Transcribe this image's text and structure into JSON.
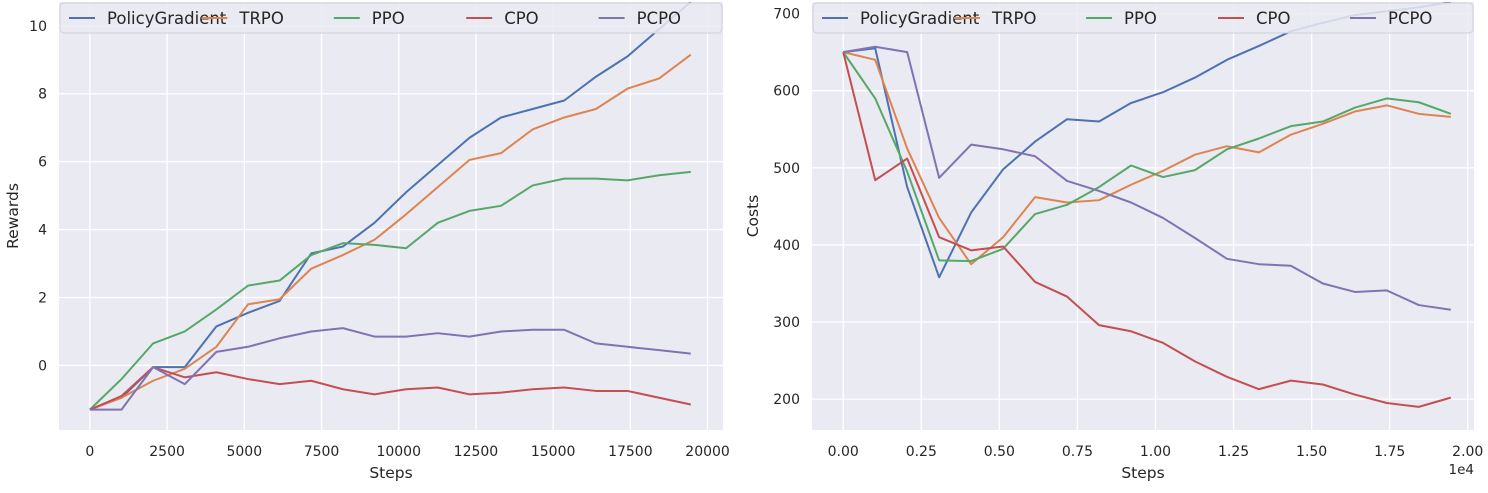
{
  "chart_data": [
    {
      "type": "line",
      "xlabel": "Steps",
      "ylabel": "Rewards",
      "xlim": [
        -1000,
        20500
      ],
      "ylim": [
        -1.9,
        10.7
      ],
      "xticks": [
        0,
        2500,
        5000,
        7500,
        10000,
        12500,
        15000,
        17500,
        20000
      ],
      "xtick_labels": [
        "0",
        "2500",
        "5000",
        "7500",
        "10000",
        "12500",
        "15000",
        "17500",
        "20000"
      ],
      "yticks": [
        0,
        2,
        4,
        6,
        8,
        10
      ],
      "ytick_labels": [
        "0",
        "2",
        "4",
        "6",
        "8",
        "10"
      ],
      "x_offset_label": "",
      "grid": true,
      "legend": "top",
      "x": [
        0,
        1024,
        2048,
        3072,
        4096,
        5120,
        6144,
        7168,
        8192,
        9216,
        10240,
        11264,
        12288,
        13312,
        14336,
        15360,
        16384,
        17408,
        18432,
        19456
      ],
      "series": [
        {
          "name": "PolicyGradient",
          "color": "#4c72b0",
          "values": [
            -1.3,
            -0.95,
            -0.05,
            -0.05,
            1.15,
            1.55,
            1.9,
            3.3,
            3.5,
            4.2,
            5.1,
            5.9,
            6.7,
            7.3,
            7.55,
            7.8,
            8.5,
            9.1,
            9.9,
            10.7
          ]
        },
        {
          "name": "TRPO",
          "color": "#dd8452",
          "values": [
            -1.3,
            -0.95,
            -0.45,
            -0.1,
            0.55,
            1.8,
            1.95,
            2.85,
            3.25,
            3.7,
            4.45,
            5.25,
            6.05,
            6.25,
            6.95,
            7.3,
            7.55,
            8.15,
            8.45,
            9.15
          ]
        },
        {
          "name": "PPO",
          "color": "#55a868",
          "values": [
            -1.3,
            -0.4,
            0.65,
            1.0,
            1.65,
            2.35,
            2.5,
            3.25,
            3.6,
            3.55,
            3.45,
            4.2,
            4.55,
            4.7,
            5.3,
            5.5,
            5.5,
            5.45,
            5.6,
            5.7
          ]
        },
        {
          "name": "CPO",
          "color": "#c44e52",
          "values": [
            -1.3,
            -0.9,
            -0.05,
            -0.35,
            -0.2,
            -0.4,
            -0.55,
            -0.45,
            -0.7,
            -0.85,
            -0.7,
            -0.65,
            -0.85,
            -0.8,
            -0.7,
            -0.65,
            -0.75,
            -0.75,
            -0.95,
            -1.15
          ]
        },
        {
          "name": "PCPO",
          "color": "#8172b2",
          "values": [
            -1.3,
            -1.3,
            -0.05,
            -0.55,
            0.4,
            0.55,
            0.8,
            1.0,
            1.1,
            0.85,
            0.85,
            0.95,
            0.85,
            1.0,
            1.05,
            1.05,
            0.65,
            0.55,
            0.45,
            0.35
          ]
        }
      ]
    },
    {
      "type": "line",
      "xlabel": "Steps",
      "ylabel": "Costs",
      "xlim": [
        -0.1,
        2.02
      ],
      "ylim": [
        160,
        715
      ],
      "xticks": [
        0,
        0.25,
        0.5,
        0.75,
        1.0,
        1.25,
        1.5,
        1.75,
        2.0
      ],
      "xtick_labels": [
        "0.00",
        "0.25",
        "0.50",
        "0.75",
        "1.00",
        "1.25",
        "1.50",
        "1.75",
        "2.00"
      ],
      "yticks": [
        200,
        300,
        400,
        500,
        600,
        700
      ],
      "ytick_labels": [
        "200",
        "300",
        "400",
        "500",
        "600",
        "700"
      ],
      "x_offset_label": "1e4",
      "grid": true,
      "legend": "top",
      "x": [
        0,
        0.1024,
        0.2048,
        0.3072,
        0.4096,
        0.512,
        0.6144,
        0.7168,
        0.8192,
        0.9216,
        1.024,
        1.1264,
        1.2288,
        1.3312,
        1.4336,
        1.536,
        1.6384,
        1.7408,
        1.8432,
        1.9456
      ],
      "series": [
        {
          "name": "PolicyGradient",
          "color": "#4c72b0",
          "values": [
            650,
            655,
            475,
            358,
            442,
            498,
            534,
            563,
            560,
            584,
            598,
            617,
            640,
            658,
            677,
            688,
            698,
            703,
            708,
            715
          ]
        },
        {
          "name": "TRPO",
          "color": "#dd8452",
          "values": [
            650,
            640,
            525,
            435,
            375,
            410,
            462,
            455,
            458,
            478,
            496,
            517,
            528,
            520,
            543,
            557,
            573,
            581,
            570,
            566
          ]
        },
        {
          "name": "PPO",
          "color": "#55a868",
          "values": [
            650,
            590,
            495,
            380,
            379,
            395,
            440,
            452,
            475,
            503,
            488,
            497,
            524,
            538,
            554,
            560,
            578,
            590,
            585,
            570
          ]
        },
        {
          "name": "CPO",
          "color": "#c44e52",
          "values": [
            650,
            484,
            512,
            410,
            393,
            398,
            352,
            333,
            296,
            288,
            273,
            249,
            229,
            213,
            224,
            219,
            206,
            195,
            190,
            202
          ]
        },
        {
          "name": "PCPO",
          "color": "#8172b2",
          "values": [
            650,
            657,
            650,
            487,
            530,
            524,
            515,
            483,
            470,
            455,
            435,
            409,
            382,
            375,
            373,
            350,
            339,
            341,
            322,
            316
          ]
        }
      ]
    }
  ]
}
